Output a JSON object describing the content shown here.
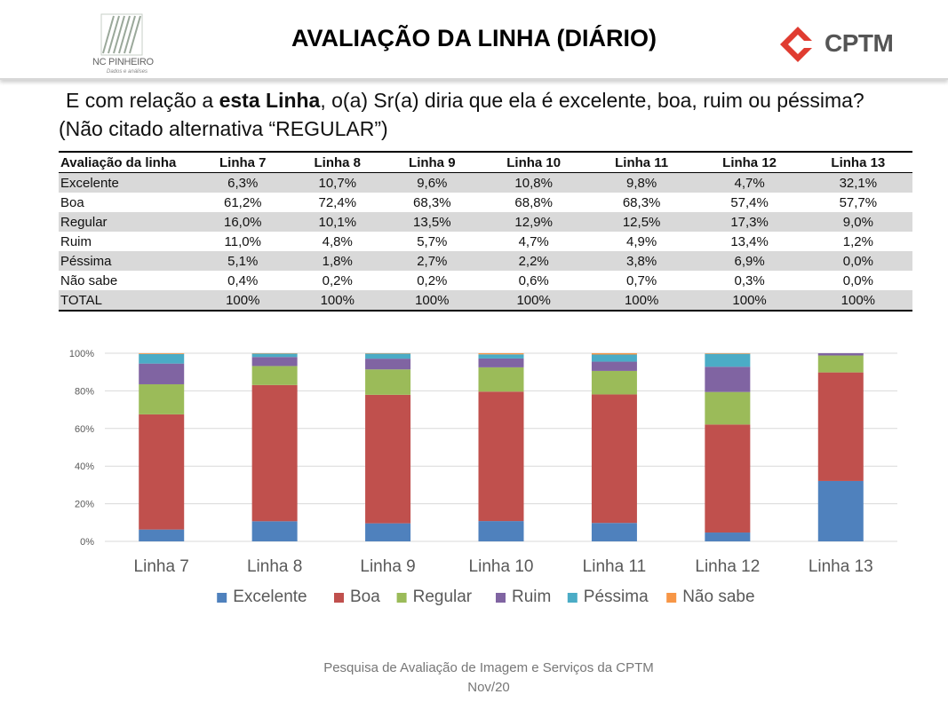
{
  "header": {
    "title": "AVALIAÇÃO DA LINHA (DIÁRIO)",
    "logo_left": {
      "name": "NC PINHEIRO",
      "tagline": "Dados e análises"
    },
    "logo_right": {
      "name": "CPTM",
      "color": "#e03c31"
    }
  },
  "question": {
    "line1_before": "E com relação a ",
    "line1_bold": "esta Linha",
    "line1_after": ", o(a) Sr(a) diria que ela é excelente, boa, ruim ou péssima?",
    "line2": "(Não citado alternativa “REGULAR”)"
  },
  "table": {
    "headers": [
      "Avaliação da linha",
      "Linha 7",
      "Linha 8",
      "Linha 9",
      "Linha 10",
      "Linha 11",
      "Linha 12",
      "Linha 13"
    ],
    "rows": [
      [
        "Excelente",
        "6,3%",
        "10,7%",
        "9,6%",
        "10,8%",
        "9,8%",
        "4,7%",
        "32,1%"
      ],
      [
        "Boa",
        "61,2%",
        "72,4%",
        "68,3%",
        "68,8%",
        "68,3%",
        "57,4%",
        "57,7%"
      ],
      [
        "Regular",
        "16,0%",
        "10,1%",
        "13,5%",
        "12,9%",
        "12,5%",
        "17,3%",
        "9,0%"
      ],
      [
        "Ruim",
        "11,0%",
        "4,8%",
        "5,7%",
        "4,7%",
        "4,9%",
        "13,4%",
        "1,2%"
      ],
      [
        "Péssima",
        "5,1%",
        "1,8%",
        "2,7%",
        "2,2%",
        "3,8%",
        "6,9%",
        "0,0%"
      ],
      [
        "Não sabe",
        "0,4%",
        "0,2%",
        "0,2%",
        "0,6%",
        "0,7%",
        "0,3%",
        "0,0%"
      ],
      [
        "TOTAL",
        "100%",
        "100%",
        "100%",
        "100%",
        "100%",
        "100%",
        "100%"
      ]
    ]
  },
  "chart_data": {
    "type": "bar",
    "stacked": true,
    "categories": [
      "Linha 7",
      "Linha 8",
      "Linha 9",
      "Linha 10",
      "Linha 11",
      "Linha 12",
      "Linha 13"
    ],
    "series": [
      {
        "name": "Excelente",
        "color": "#4f81bd",
        "values": [
          6.3,
          10.7,
          9.6,
          10.8,
          9.8,
          4.7,
          32.1
        ]
      },
      {
        "name": "Boa",
        "color": "#c0504d",
        "values": [
          61.2,
          72.4,
          68.3,
          68.8,
          68.3,
          57.4,
          57.7
        ]
      },
      {
        "name": "Regular",
        "color": "#9bbb59",
        "values": [
          16.0,
          10.1,
          13.5,
          12.9,
          12.5,
          17.3,
          9.0
        ]
      },
      {
        "name": "Ruim",
        "color": "#8064a2",
        "values": [
          11.0,
          4.8,
          5.7,
          4.7,
          4.9,
          13.4,
          1.2
        ]
      },
      {
        "name": "Péssima",
        "color": "#4bacc6",
        "values": [
          5.1,
          1.8,
          2.7,
          2.2,
          3.8,
          6.9,
          0.0
        ]
      },
      {
        "name": "Não sabe",
        "color": "#f79646",
        "values": [
          0.4,
          0.2,
          0.2,
          0.6,
          0.7,
          0.3,
          0.0
        ]
      }
    ],
    "ylim": [
      0,
      100
    ],
    "yticks": [
      "0%",
      "20%",
      "40%",
      "60%",
      "80%",
      "100%"
    ],
    "grid": true,
    "legend": "bottom"
  },
  "footer": {
    "line1": "Pesquisa de Avaliação de Imagem  e Serviços da CPTM",
    "line2": "Nov/20"
  }
}
